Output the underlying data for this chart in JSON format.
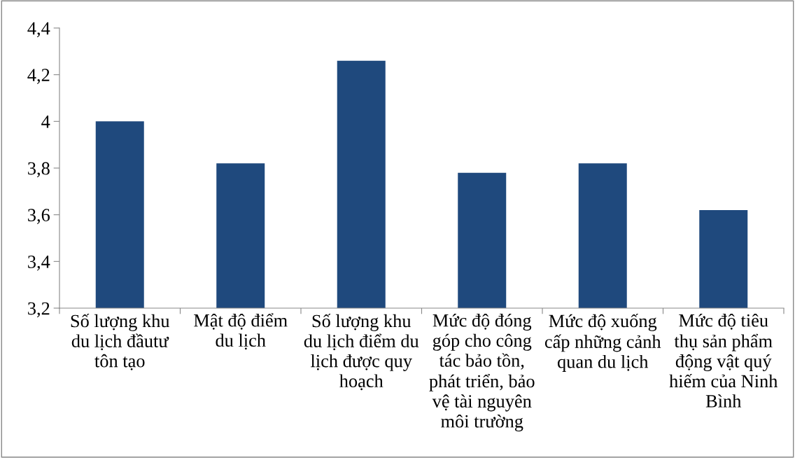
{
  "chart_data": {
    "type": "bar",
    "categories": [
      "Số lượng khu du lịch đầutư tôn tạo",
      "Mật độ điểm du lịch",
      "Số lượng khu du lịch điểm du lịch được quy hoạch",
      "Mức độ đóng góp cho công tác bảo tồn, phát triển, bảo vệ tài nguyên môi trường",
      "Mức độ xuống cấp những cảnh quan du lịch",
      "Mức độ tiêu thụ sản phẩm động vật quý hiếm của Ninh Bình"
    ],
    "values": [
      4.0,
      3.82,
      4.26,
      3.78,
      3.82,
      3.62
    ],
    "color": "#1f497d",
    "ylim": [
      3.2,
      4.4
    ],
    "yticks": [
      {
        "value": 3.2,
        "label": "3,2"
      },
      {
        "value": 3.4,
        "label": "3,4"
      },
      {
        "value": 3.6,
        "label": "3,6"
      },
      {
        "value": 3.8,
        "label": "3,8"
      },
      {
        "value": 4,
        "label": "4"
      },
      {
        "value": 4.2,
        "label": "4,2"
      },
      {
        "value": 4.4,
        "label": "4,4"
      }
    ],
    "grid": false,
    "legend": false
  }
}
